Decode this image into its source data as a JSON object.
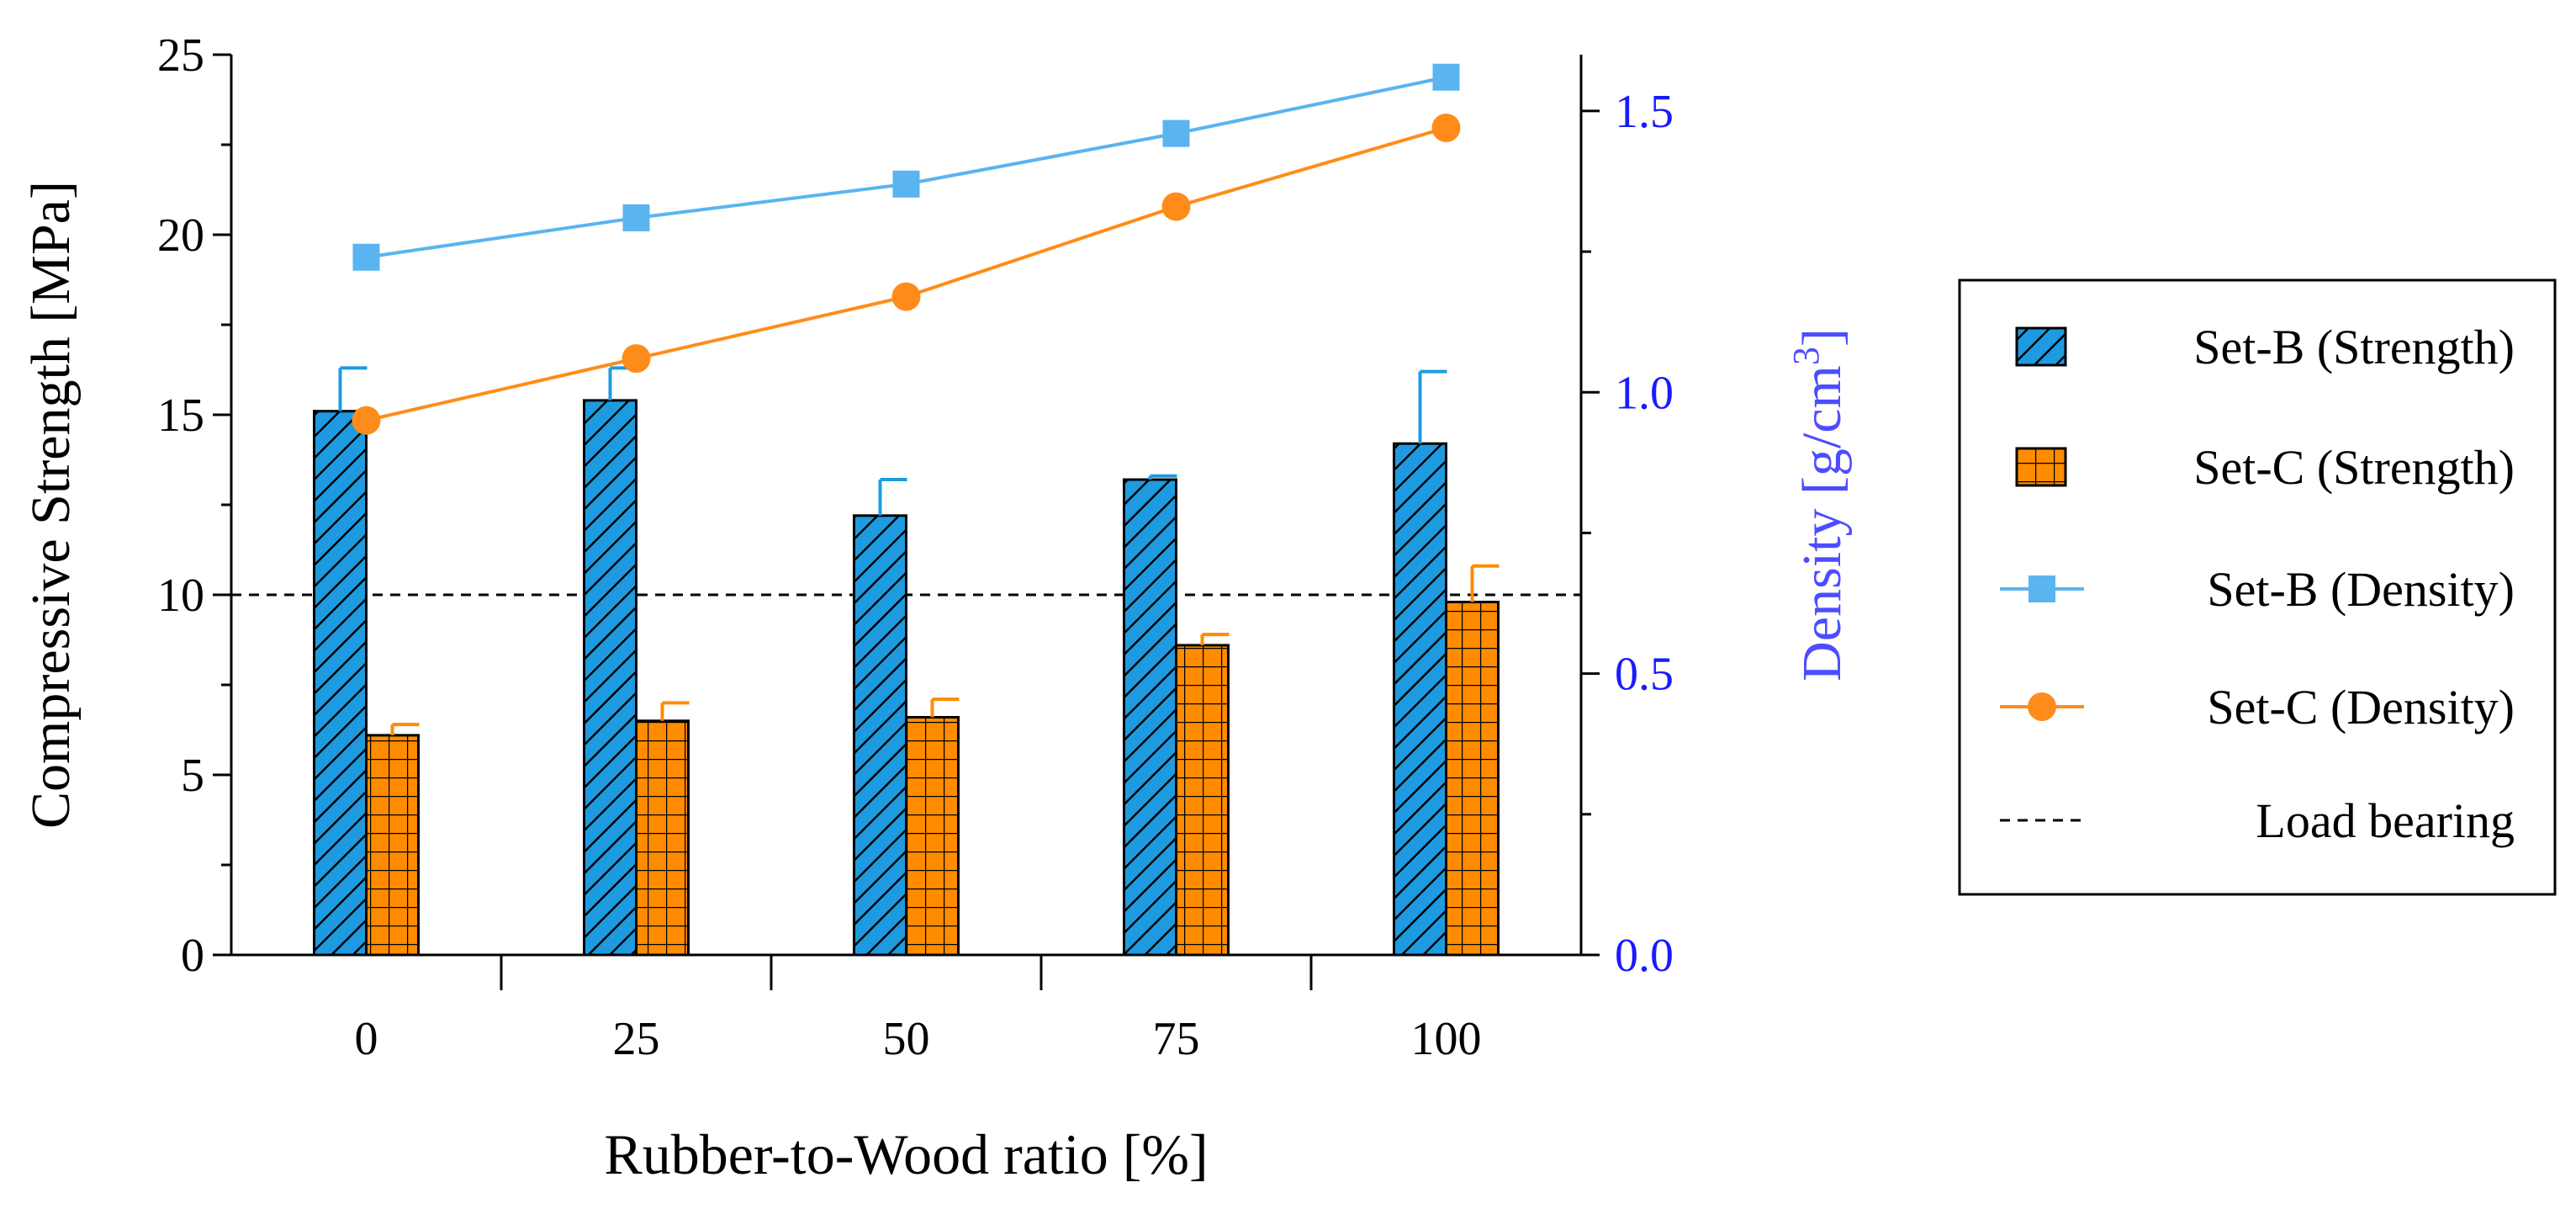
{
  "chart_data": {
    "type": "bar",
    "categories": [
      "0",
      "25",
      "50",
      "75",
      "100"
    ],
    "xlabel": "Rubber-to-Wood ratio [%]",
    "ylabel": "Compressive Strength [MPa]",
    "y2label": {
      "prefix": "Density [g/cm",
      "sup": "3",
      "suffix": "]"
    },
    "ylim": [
      0,
      25
    ],
    "y2lim": [
      0,
      1.6
    ],
    "yticks": [
      "0",
      "5",
      "10",
      "15",
      "20",
      "25"
    ],
    "y2ticks": [
      "0.0",
      "0.5",
      "1.0",
      "1.5"
    ],
    "bar_series": [
      {
        "name": "Set-B (Strength)",
        "values": [
          15.1,
          15.4,
          12.2,
          13.2,
          14.2
        ],
        "errors": [
          1.2,
          0.9,
          1.0,
          0.1,
          2.0
        ],
        "color": "#1e9be0",
        "pattern": "hatch"
      },
      {
        "name": "Set-C (Strength)",
        "values": [
          6.1,
          6.5,
          6.6,
          8.6,
          9.8
        ],
        "errors": [
          0.3,
          0.5,
          0.5,
          0.3,
          1.0
        ],
        "color": "#ff8c00",
        "pattern": "grid"
      }
    ],
    "line_series": [
      {
        "name": "Set-B (Density)",
        "values": [
          1.24,
          1.31,
          1.37,
          1.46,
          1.56
        ],
        "color": "#5ab4f0",
        "marker": "square"
      },
      {
        "name": "Set-C (Density)",
        "values": [
          0.95,
          1.06,
          1.17,
          1.33,
          1.47
        ],
        "color": "#ff8c1a",
        "marker": "circle"
      }
    ],
    "reference_line": {
      "name": "Load bearing",
      "value": 10
    },
    "axis_color_right": "#1a1aff",
    "legend_position": "right"
  }
}
